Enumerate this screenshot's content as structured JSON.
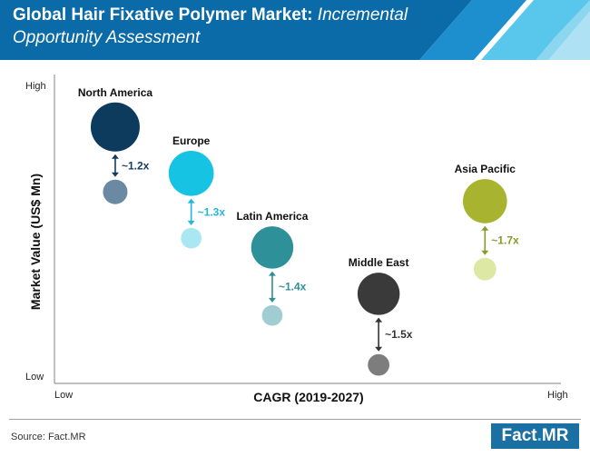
{
  "header": {
    "title_bold": "Global Hair Fixative Polymer Market:",
    "title_italic": "Incremental",
    "title_line2": "Opportunity Assessment"
  },
  "colors": {
    "banner": "#0b6aa8",
    "banner_stripe_light": "#59c6ec",
    "banner_stripe_mid": "#1e8fce"
  },
  "chart_data": {
    "type": "scatter",
    "xlabel": "CAGR (2019-2027)",
    "ylabel": "Market Value (US$ Mn)",
    "x_ticks": {
      "low": "Low",
      "high": "High"
    },
    "y_ticks": {
      "low": "Low",
      "high": "High"
    },
    "series": [
      {
        "name": "North America",
        "multiplier": "~1.2x",
        "color_current": "#0d3b5e",
        "color_future": "#6a8aa3",
        "color_label": "#123c5e",
        "current": {
          "x": 0.12,
          "y": 0.83
        },
        "future": {
          "x": 0.12,
          "y": 0.62
        },
        "size_current": 1.0,
        "size_future": 0.5
      },
      {
        "name": "Europe",
        "multiplier": "~1.3x",
        "color_current": "#16c3e3",
        "color_future": "#a9e7f3",
        "color_label": "#22b7d9",
        "current": {
          "x": 0.27,
          "y": 0.68
        },
        "future": {
          "x": 0.27,
          "y": 0.47
        },
        "size_current": 0.92,
        "size_future": 0.42
      },
      {
        "name": "Latin America",
        "multiplier": "~1.4x",
        "color_current": "#2e9099",
        "color_future": "#9fcdd1",
        "color_label": "#2e8f98",
        "current": {
          "x": 0.43,
          "y": 0.44
        },
        "future": {
          "x": 0.43,
          "y": 0.22
        },
        "size_current": 0.86,
        "size_future": 0.42
      },
      {
        "name": "Middle East",
        "multiplier": "~1.5x",
        "color_current": "#3a3a3a",
        "color_future": "#7d7d7d",
        "color_label": "#333333",
        "current": {
          "x": 0.64,
          "y": 0.29
        },
        "future": {
          "x": 0.64,
          "y": 0.06
        },
        "size_current": 0.86,
        "size_future": 0.44
      },
      {
        "name": "Asia Pacific",
        "multiplier": "~1.7x",
        "color_current": "#a8b42f",
        "color_future": "#dde8a4",
        "color_label": "#8a9a28",
        "current": {
          "x": 0.85,
          "y": 0.59
        },
        "future": {
          "x": 0.85,
          "y": 0.37
        },
        "size_current": 0.9,
        "size_future": 0.46
      }
    ]
  },
  "footer": {
    "source": "Source: Fact.MR",
    "logo_left": "Fact",
    "logo_dot": ".",
    "logo_right": "MR"
  }
}
